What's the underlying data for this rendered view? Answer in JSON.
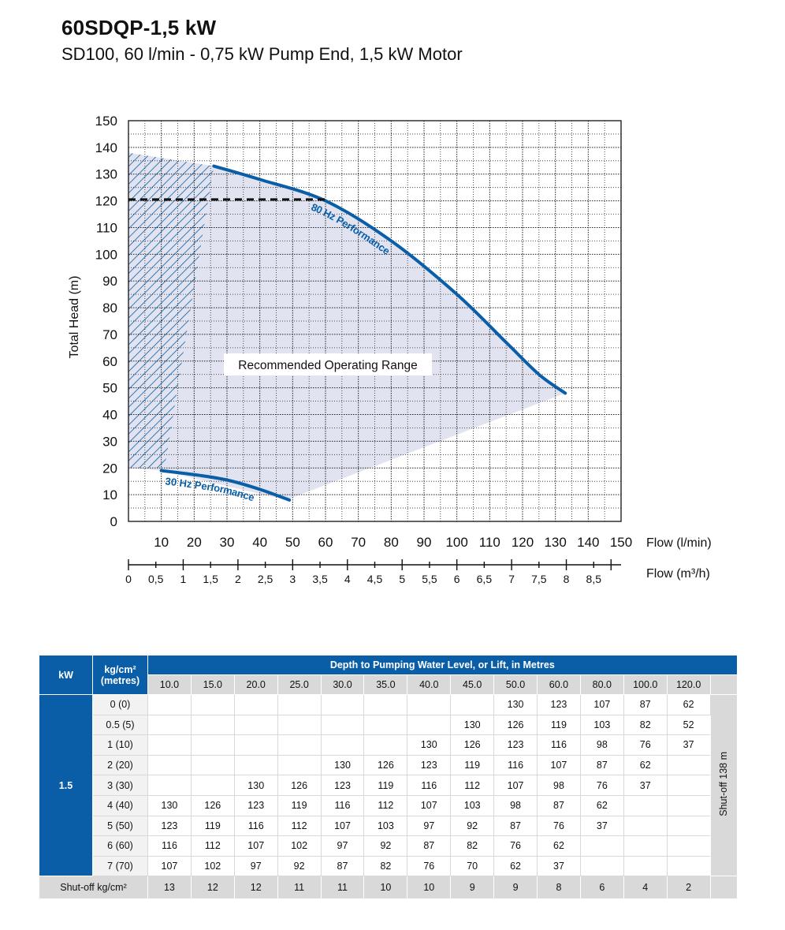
{
  "header": {
    "title": "60SDQP-1,5 kW",
    "subtitle": "SD100, 60 l/min - 0,75 kW Pump End, 1,5 kW Motor"
  },
  "chart_data": {
    "type": "line",
    "xlabel": "Flow (l/min)",
    "x2label": "Flow (m³/h)",
    "ylabel": "Total Head (m)",
    "xlim": [
      0,
      150
    ],
    "ylim": [
      0,
      150
    ],
    "xticks": [
      "10",
      "20",
      "30",
      "40",
      "50",
      "60",
      "70",
      "80",
      "90",
      "100",
      "110",
      "120",
      "130",
      "140",
      "150"
    ],
    "yticks": [
      "0",
      "10",
      "20",
      "30",
      "40",
      "50",
      "60",
      "70",
      "80",
      "90",
      "100",
      "110",
      "120",
      "130",
      "140",
      "150"
    ],
    "x2ticks": [
      "0",
      "0,5",
      "1",
      "1,5",
      "2",
      "2,5",
      "3",
      "3,5",
      "4",
      "4,5",
      "5",
      "5,5",
      "6",
      "6,5",
      "7",
      "7,5",
      "8",
      "8,5"
    ],
    "grid": true,
    "series": [
      {
        "name": "80 Hz Performance",
        "x": [
          26,
          40,
          60,
          80,
          100,
          115,
          125,
          133
        ],
        "y": [
          133,
          128,
          120,
          105,
          85,
          67,
          55,
          48
        ]
      },
      {
        "name": "30 Hz Performance",
        "x": [
          10,
          20,
          30,
          40,
          49
        ],
        "y": [
          19,
          17.5,
          15.5,
          12,
          8
        ]
      },
      {
        "name": "",
        "x": [
          0,
          60
        ],
        "y": [
          120.5,
          120.5
        ]
      }
    ],
    "annotations": [
      {
        "text": "Recommended Operating Range"
      }
    ],
    "colors": {
      "curve": "#0a5ea8",
      "range_fill": "#c8cde3",
      "hatch": "#0a5ea8"
    }
  },
  "table": {
    "col_kw": "kW",
    "col_pressure": "kg/cm²\n(metres)",
    "depth_header": "Depth to Pumping Water Level, or Lift, in Metres",
    "depths": [
      "10.0",
      "15.0",
      "20.0",
      "25.0",
      "30.0",
      "35.0",
      "40.0",
      "45.0",
      "50.0",
      "60.0",
      "80.0",
      "100.0",
      "120.0"
    ],
    "kw_value": "1.5",
    "shutoff_side": "Shut-off 138 m",
    "rows": [
      {
        "label": "0 (0)",
        "values": [
          "",
          "",
          "",
          "",
          "",
          "",
          "",
          "",
          "130",
          "123",
          "107",
          "87",
          "62"
        ]
      },
      {
        "label": "0.5 (5)",
        "values": [
          "",
          "",
          "",
          "",
          "",
          "",
          "",
          "130",
          "126",
          "119",
          "103",
          "82",
          "52"
        ]
      },
      {
        "label": "1 (10)",
        "values": [
          "",
          "",
          "",
          "",
          "",
          "",
          "130",
          "126",
          "123",
          "116",
          "98",
          "76",
          "37"
        ]
      },
      {
        "label": "2 (20)",
        "values": [
          "",
          "",
          "",
          "",
          "130",
          "126",
          "123",
          "119",
          "116",
          "107",
          "87",
          "62",
          ""
        ]
      },
      {
        "label": "3 (30)",
        "values": [
          "",
          "",
          "130",
          "126",
          "123",
          "119",
          "116",
          "112",
          "107",
          "98",
          "76",
          "37",
          ""
        ]
      },
      {
        "label": "4 (40)",
        "values": [
          "130",
          "126",
          "123",
          "119",
          "116",
          "112",
          "107",
          "103",
          "98",
          "87",
          "62",
          "",
          ""
        ]
      },
      {
        "label": "5 (50)",
        "values": [
          "123",
          "119",
          "116",
          "112",
          "107",
          "103",
          "97",
          "92",
          "87",
          "76",
          "37",
          "",
          ""
        ]
      },
      {
        "label": "6 (60)",
        "values": [
          "116",
          "112",
          "107",
          "102",
          "97",
          "92",
          "87",
          "82",
          "76",
          "62",
          "",
          "",
          ""
        ]
      },
      {
        "label": "7 (70)",
        "values": [
          "107",
          "102",
          "97",
          "92",
          "87",
          "82",
          "76",
          "70",
          "62",
          "37",
          "",
          "",
          ""
        ]
      }
    ],
    "footer_label": "Shut-off kg/cm²",
    "footer_values": [
      "13",
      "12",
      "12",
      "11",
      "11",
      "10",
      "10",
      "9",
      "9",
      "8",
      "6",
      "4",
      "2"
    ]
  }
}
